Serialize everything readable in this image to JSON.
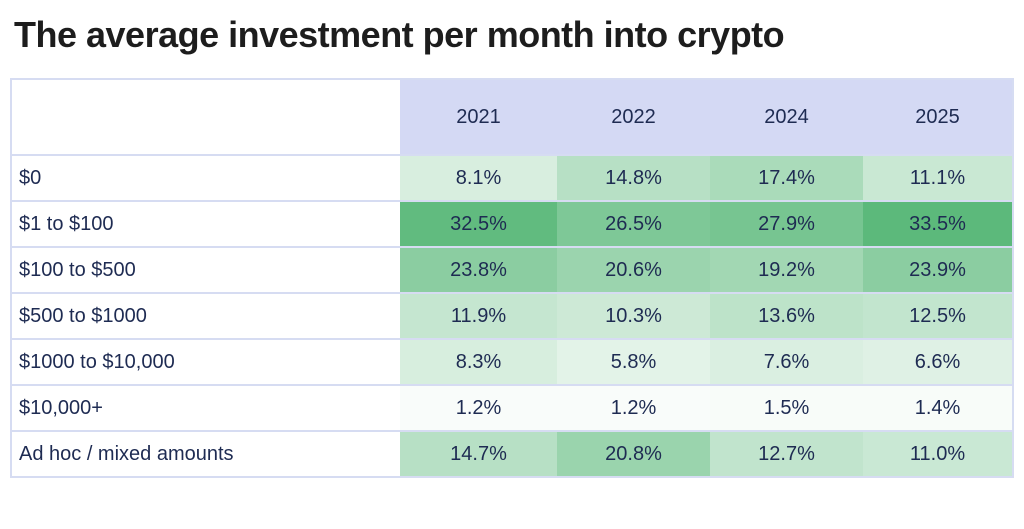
{
  "title": "The average investment per month into crypto",
  "chart_data": {
    "type": "heatmap",
    "title": "The average investment per month into crypto",
    "columns": [
      "2021",
      "2022",
      "2024",
      "2025"
    ],
    "row_label_header": "",
    "unit": "%",
    "rows": [
      {
        "label": "$0",
        "values": [
          8.1,
          14.8,
          17.4,
          11.1
        ],
        "display": [
          "8.1%",
          "14.8%",
          "17.4%",
          "11.1%"
        ]
      },
      {
        "label": "$1 to $100",
        "values": [
          32.5,
          26.5,
          27.9,
          33.5
        ],
        "display": [
          "32.5%",
          "26.5%",
          "27.9%",
          "33.5%"
        ]
      },
      {
        "label": "$100 to $500",
        "values": [
          23.8,
          20.6,
          19.2,
          23.9
        ],
        "display": [
          "23.8%",
          "20.6%",
          "19.2%",
          "23.9%"
        ]
      },
      {
        "label": "$500 to $1000",
        "values": [
          11.9,
          10.3,
          13.6,
          12.5
        ],
        "display": [
          "11.9%",
          "10.3%",
          "13.6%",
          "12.5%"
        ]
      },
      {
        "label": "$1000 to $10,000",
        "values": [
          8.3,
          5.8,
          7.6,
          6.6
        ],
        "display": [
          "8.3%",
          "5.8%",
          "7.6%",
          "6.6%"
        ]
      },
      {
        "label": "$10,000+",
        "values": [
          1.2,
          1.2,
          1.5,
          1.4
        ],
        "display": [
          "1.2%",
          "1.2%",
          "1.5%",
          "1.4%"
        ]
      },
      {
        "label": "Ad hoc / mixed amounts",
        "values": [
          14.7,
          20.8,
          12.7,
          11.0
        ],
        "display": [
          "14.7%",
          "20.8%",
          "12.7%",
          "11.0%"
        ]
      }
    ],
    "color_scale": {
      "min_color": "#ffffff",
      "max_color": "#5cb97b",
      "domain": [
        0,
        33.5
      ]
    },
    "legend": "none",
    "grid": "row-separators"
  },
  "colors": {
    "header_bg": "#d4d9f4",
    "border": "#d6dcf2",
    "text_navy": "#1e2b52",
    "title_color": "#1d1d1d",
    "page_bg": "#ffffff"
  }
}
